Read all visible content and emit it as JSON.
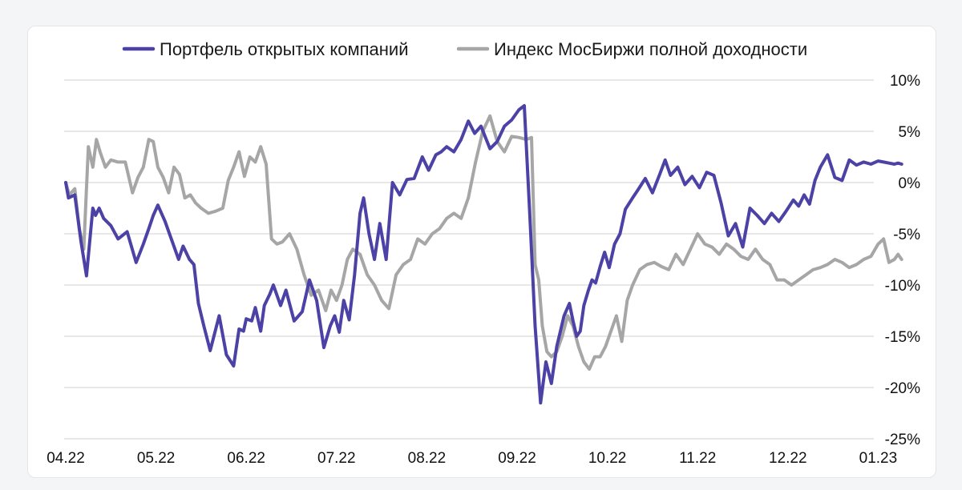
{
  "colors": {
    "portfolio": "#4c42a6",
    "index": "#a6a6a6",
    "grid": "#d9d9d9"
  },
  "chart_data": {
    "type": "line",
    "title": "",
    "xlabel": "",
    "ylabel": "",
    "ylim": [
      -25,
      10
    ],
    "yticks": [
      10,
      5,
      0,
      -5,
      -10,
      -15,
      -20,
      -25
    ],
    "ytick_labels": [
      "10%",
      "5%",
      "0%",
      "-5%",
      "-10%",
      "-15%",
      "-20%",
      "-25%"
    ],
    "xtick_labels": [
      "04.22",
      "05.22",
      "06.22",
      "07.22",
      "08.22",
      "09.22",
      "10.22",
      "11.22",
      "12.22",
      "01.23"
    ],
    "xlim": [
      0,
      9.5
    ],
    "grid": true,
    "legend_position": "top",
    "series": [
      {
        "name": "Портфель открытых компаний",
        "color": "#4c42a6",
        "x": [
          0,
          0.03,
          0.1,
          0.17,
          0.23,
          0.3,
          0.33,
          0.37,
          0.42,
          0.5,
          0.58,
          0.68,
          0.78,
          0.86,
          0.92,
          0.97,
          1.02,
          1.1,
          1.17,
          1.25,
          1.3,
          1.37,
          1.42,
          1.47,
          1.53,
          1.6,
          1.7,
          1.78,
          1.86,
          1.92,
          1.97,
          2.0,
          2.06,
          2.1,
          2.16,
          2.2,
          2.26,
          2.3,
          2.38,
          2.44,
          2.53,
          2.62,
          2.7,
          2.78,
          2.86,
          2.93,
          2.98,
          3.03,
          3.08,
          3.14,
          3.2,
          3.26,
          3.3,
          3.36,
          3.42,
          3.48,
          3.55,
          3.62,
          3.7,
          3.78,
          3.86,
          3.95,
          4.02,
          4.1,
          4.16,
          4.22,
          4.3,
          4.38,
          4.46,
          4.53,
          4.6,
          4.7,
          4.78,
          4.86,
          4.94,
          5.02,
          5.08,
          5.14,
          5.2,
          5.26,
          5.32,
          5.38,
          5.44,
          5.52,
          5.58,
          5.62,
          5.66,
          5.7,
          5.74,
          5.79,
          5.83,
          5.87,
          5.92,
          5.97,
          6.02,
          6.08,
          6.14,
          6.2,
          6.28,
          6.34,
          6.42,
          6.5,
          6.58,
          6.64,
          6.7,
          6.78,
          6.86,
          6.94,
          7.02,
          7.1,
          7.18,
          7.26,
          7.34,
          7.42,
          7.5,
          7.58,
          7.66,
          7.74,
          7.82,
          7.9,
          7.98,
          8.06,
          8.12,
          8.18,
          8.24,
          8.3,
          8.36,
          8.44,
          8.52,
          8.6,
          8.68,
          8.76,
          8.84,
          8.92,
          9.0,
          9.06,
          9.12,
          9.18,
          9.22,
          9.26
        ],
        "values": [
          0,
          -1.5,
          -1.2,
          -5.8,
          -9.1,
          -2.5,
          -3.2,
          -2.5,
          -3.5,
          -4.2,
          -5.5,
          -4.8,
          -7.8,
          -6.0,
          -4.5,
          -3.2,
          -2.2,
          -3.8,
          -5.5,
          -7.5,
          -6.2,
          -7.5,
          -8.0,
          -11.8,
          -14.0,
          -16.4,
          -13.0,
          -16.8,
          -17.9,
          -14.3,
          -14.5,
          -13.3,
          -13.5,
          -12.2,
          -14.5,
          -12.0,
          -10.9,
          -10.0,
          -12.0,
          -10.5,
          -13.5,
          -12.6,
          -9.5,
          -11.5,
          -16.1,
          -14.0,
          -13.0,
          -14.6,
          -11.5,
          -13.4,
          -9.0,
          -3.0,
          -1.5,
          -5.0,
          -7.5,
          -4.0,
          -7.5,
          0.0,
          -1.2,
          0.3,
          0.4,
          2.5,
          1.2,
          2.7,
          3.0,
          3.5,
          3.0,
          4.2,
          6.0,
          4.8,
          5.5,
          3.3,
          4.0,
          5.5,
          6.1,
          7.1,
          7.5,
          -3.0,
          -14.0,
          -21.5,
          -17.5,
          -19.6,
          -16.0,
          -13.0,
          -11.8,
          -13.5,
          -15.0,
          -14.5,
          -12.0,
          -10.5,
          -9.5,
          -9.8,
          -8.2,
          -6.8,
          -8.3,
          -6.0,
          -5.0,
          -2.6,
          -1.5,
          -0.7,
          0.4,
          -1.0,
          0.8,
          2.2,
          0.7,
          1.5,
          -0.2,
          0.6,
          -0.5,
          1.0,
          0.7,
          -2.0,
          -5.2,
          -4.0,
          -6.3,
          -2.5,
          -3.2,
          -4.0,
          -3.0,
          -3.8,
          -2.8,
          -1.7,
          -2.3,
          -1.2,
          -2.1,
          0.2,
          1.5,
          2.7,
          0.5,
          0.2,
          2.2,
          1.7,
          2.0,
          1.8,
          2.1,
          2.0,
          1.9,
          1.8,
          1.9,
          1.8
        ],
        "values_note": ""
      },
      {
        "name": "Индекс МосБиржи полной доходности",
        "color": "#a6a6a6",
        "x": [
          0,
          0.04,
          0.1,
          0.15,
          0.2,
          0.25,
          0.3,
          0.34,
          0.38,
          0.44,
          0.5,
          0.58,
          0.66,
          0.74,
          0.8,
          0.86,
          0.92,
          0.97,
          1.02,
          1.08,
          1.14,
          1.2,
          1.26,
          1.32,
          1.38,
          1.44,
          1.5,
          1.58,
          1.66,
          1.74,
          1.8,
          1.86,
          1.92,
          1.98,
          2.04,
          2.1,
          2.16,
          2.22,
          2.28,
          2.34,
          2.4,
          2.48,
          2.56,
          2.64,
          2.72,
          2.8,
          2.88,
          2.94,
          3.0,
          3.06,
          3.12,
          3.18,
          3.26,
          3.34,
          3.42,
          3.5,
          3.58,
          3.66,
          3.74,
          3.82,
          3.9,
          3.98,
          4.06,
          4.14,
          4.22,
          4.3,
          4.38,
          4.46,
          4.54,
          4.62,
          4.7,
          4.78,
          4.86,
          4.94,
          5.02,
          5.1,
          5.16,
          5.2,
          5.24,
          5.28,
          5.33,
          5.38,
          5.44,
          5.5,
          5.56,
          5.62,
          5.68,
          5.74,
          5.8,
          5.86,
          5.92,
          5.98,
          6.04,
          6.1,
          6.16,
          6.22,
          6.28,
          6.36,
          6.44,
          6.52,
          6.6,
          6.68,
          6.76,
          6.84,
          6.92,
          7.0,
          7.08,
          7.16,
          7.24,
          7.32,
          7.4,
          7.48,
          7.56,
          7.64,
          7.72,
          7.8,
          7.88,
          7.96,
          8.04,
          8.12,
          8.2,
          8.28,
          8.36,
          8.44,
          8.52,
          8.6,
          8.68,
          8.76,
          8.84,
          8.92,
          9.0,
          9.06,
          9.12,
          9.18,
          9.22,
          9.26
        ],
        "values": [
          0,
          -1.2,
          -0.6,
          -4.5,
          -6.5,
          3.5,
          1.5,
          4.2,
          3.0,
          1.5,
          2.2,
          2.0,
          2.0,
          -1.0,
          0.5,
          1.5,
          4.2,
          4.0,
          1.5,
          0.5,
          -1.0,
          1.5,
          0.8,
          -1.5,
          -1.2,
          -2.0,
          -2.5,
          -3.0,
          -2.8,
          -2.5,
          0.2,
          1.5,
          3.0,
          0.6,
          2.5,
          2.0,
          3.5,
          1.8,
          -5.5,
          -6.0,
          -5.8,
          -5.0,
          -6.5,
          -9.0,
          -11.0,
          -10.5,
          -12.5,
          -10.5,
          -11.5,
          -10.0,
          -7.5,
          -6.5,
          -7.0,
          -9.0,
          -10.0,
          -11.5,
          -12.3,
          -9.0,
          -8.0,
          -7.5,
          -5.5,
          -6.0,
          -5.0,
          -4.5,
          -3.5,
          -3.0,
          -3.5,
          -1.5,
          2.0,
          5.0,
          6.5,
          4.0,
          3.0,
          4.5,
          4.4,
          4.2,
          4.4,
          -8.0,
          -9.5,
          -14.0,
          -16.5,
          -17.0,
          -16.5,
          -15.0,
          -13.0,
          -14.0,
          -16.0,
          -17.5,
          -18.2,
          -17.0,
          -17.0,
          -16.0,
          -14.5,
          -13.0,
          -15.5,
          -11.5,
          -10.0,
          -8.5,
          -8.0,
          -7.8,
          -8.2,
          -8.5,
          -7.0,
          -8.0,
          -6.5,
          -5.0,
          -6.0,
          -6.3,
          -7.0,
          -6.0,
          -6.5,
          -7.2,
          -7.5,
          -6.5,
          -7.5,
          -8.0,
          -9.5,
          -9.5,
          -10.0,
          -9.5,
          -9.0,
          -8.5,
          -8.3,
          -8.0,
          -7.5,
          -7.8,
          -8.3,
          -8.0,
          -7.5,
          -7.2,
          -6.0,
          -5.5,
          -7.8,
          -7.5,
          -7.0,
          -7.5
        ],
        "values_note": ""
      }
    ]
  }
}
